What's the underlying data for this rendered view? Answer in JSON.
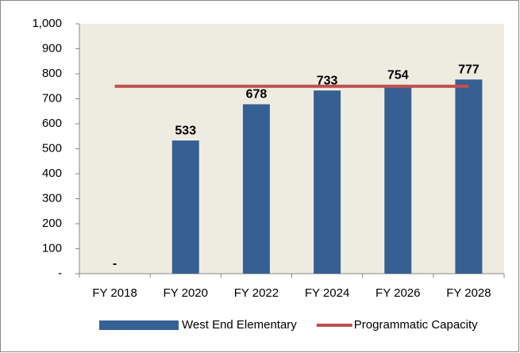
{
  "chart_data": {
    "type": "bar",
    "categories": [
      "FY 2018",
      "FY 2020",
      "FY 2022",
      "FY 2024",
      "FY 2026",
      "FY 2028"
    ],
    "series": [
      {
        "name": "West End Elementary",
        "type": "bar",
        "color": "#376092",
        "values": [
          0,
          533,
          678,
          733,
          754,
          777
        ],
        "value_labels": [
          "-",
          "533",
          "678",
          "733",
          "754",
          "777"
        ]
      },
      {
        "name": "Programmatic Capacity",
        "type": "line",
        "color": "#c0504d",
        "values": [
          750,
          750,
          750,
          750,
          750,
          750
        ]
      }
    ],
    "ylim": [
      0,
      1000
    ],
    "yticks": [
      {
        "value": 0,
        "label": "-"
      },
      100,
      200,
      300,
      400,
      500,
      600,
      700,
      800,
      900,
      {
        "value": 1000,
        "label": "1,000"
      }
    ],
    "grid": false,
    "legend": "bottom"
  }
}
